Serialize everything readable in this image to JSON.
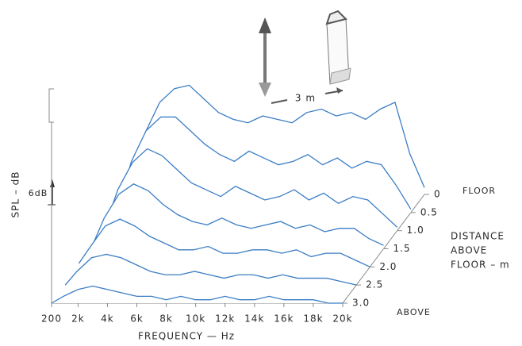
{
  "chart_data": {
    "type": "waterfall",
    "color": "#3b7dc4",
    "y_label": "SPL – dB",
    "scale_label": "6dB",
    "distance_label": "3 m",
    "x_label": "FREQUENCY — Hz",
    "z_label": [
      "DISTANCE",
      "ABOVE",
      "FLOOR – m"
    ],
    "z_back_label": "FLOOR",
    "z_front_label": "ABOVE",
    "x": [
      200,
      1000,
      2000,
      3000,
      4000,
      5000,
      6000,
      7000,
      8000,
      9000,
      10000,
      11000,
      12000,
      13000,
      14000,
      15000,
      16000,
      17000,
      18000,
      19000,
      20000
    ],
    "xlim": [
      200,
      20000
    ],
    "xticks": [
      200,
      {
        "value": 2000,
        "label": "2k"
      },
      {
        "value": 4000,
        "label": "4k"
      },
      {
        "value": 6000,
        "label": "6k"
      },
      {
        "value": 8000,
        "label": "8k"
      },
      {
        "value": 10000,
        "label": "10k"
      },
      {
        "value": 12000,
        "label": "12k"
      },
      {
        "value": 14000,
        "label": "14k"
      },
      {
        "value": 16000,
        "label": "16k"
      },
      {
        "value": 18000,
        "label": "18k"
      },
      {
        "value": 20000,
        "label": "20k"
      }
    ],
    "ylim": [
      0,
      60
    ],
    "zlim": [
      3.0,
      0
    ],
    "zticks": [
      0,
      {
        "value": 0.5,
        "label": "0.5"
      },
      {
        "value": 1.0,
        "label": "1.0"
      },
      {
        "value": 1.5,
        "label": "1.5"
      },
      {
        "value": 2.0,
        "label": "2.0"
      },
      {
        "value": 2.5,
        "label": "2.5"
      },
      {
        "value": 3.0,
        "label": "3.0"
      }
    ],
    "z": [
      0,
      0.5,
      1.0,
      1.5,
      2.0,
      2.5,
      3.0
    ],
    "series": [
      {
        "values": [
          4,
          18,
          27,
          31,
          32,
          28,
          24,
          22,
          21,
          23,
          22,
          21,
          24,
          25,
          23,
          24,
          22,
          25,
          27,
          12,
          2
        ]
      },
      {
        "values": [
          3,
          15,
          24,
          28,
          28,
          24,
          20,
          17,
          15,
          18,
          16,
          14,
          15,
          17,
          14,
          16,
          13,
          15,
          14,
          8,
          1
        ]
      },
      {
        "values": [
          2,
          12,
          20,
          24,
          22,
          18,
          14,
          12,
          10,
          13,
          11,
          9,
          10,
          12,
          9,
          11,
          8,
          10,
          9,
          5,
          1
        ]
      },
      {
        "values": [
          1,
          9,
          16,
          19,
          17,
          13,
          10,
          8,
          7,
          9,
          7,
          6,
          7,
          8,
          6,
          7,
          5,
          6,
          6,
          3,
          1
        ]
      },
      {
        "values": [
          1,
          6,
          12,
          14,
          12,
          9,
          7,
          5,
          5,
          6,
          4,
          4,
          5,
          5,
          4,
          5,
          3,
          4,
          4,
          2,
          0
        ]
      },
      {
        "values": [
          0,
          4,
          8,
          9,
          8,
          6,
          4,
          3,
          3,
          4,
          3,
          2,
          3,
          3,
          2,
          3,
          2,
          2,
          2,
          1,
          0
        ]
      },
      {
        "values": [
          0,
          2,
          4,
          5,
          4,
          3,
          2,
          2,
          1,
          2,
          1,
          1,
          2,
          1,
          1,
          2,
          1,
          1,
          1,
          0,
          0
        ]
      }
    ]
  }
}
